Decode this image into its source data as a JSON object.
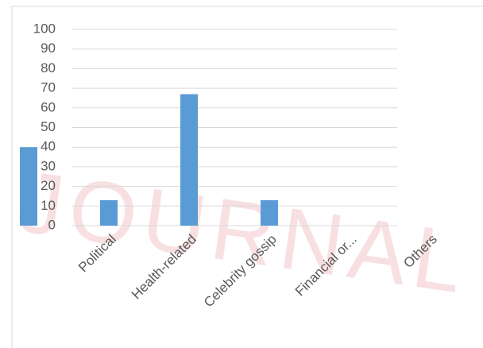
{
  "chart_data": {
    "type": "bar",
    "categories": [
      null,
      "Political",
      "Health-related",
      "Celebrity gossip",
      "Financial or...",
      "Others"
    ],
    "values": [
      40,
      13,
      67,
      13,
      0,
      0
    ],
    "color": "#5b9bd5",
    "ylim": [
      0,
      100
    ],
    "yticks": [
      0,
      10,
      20,
      30,
      40,
      50,
      60,
      70,
      80,
      90,
      100
    ],
    "grid": true,
    "watermark": "JOURNAL FO"
  }
}
